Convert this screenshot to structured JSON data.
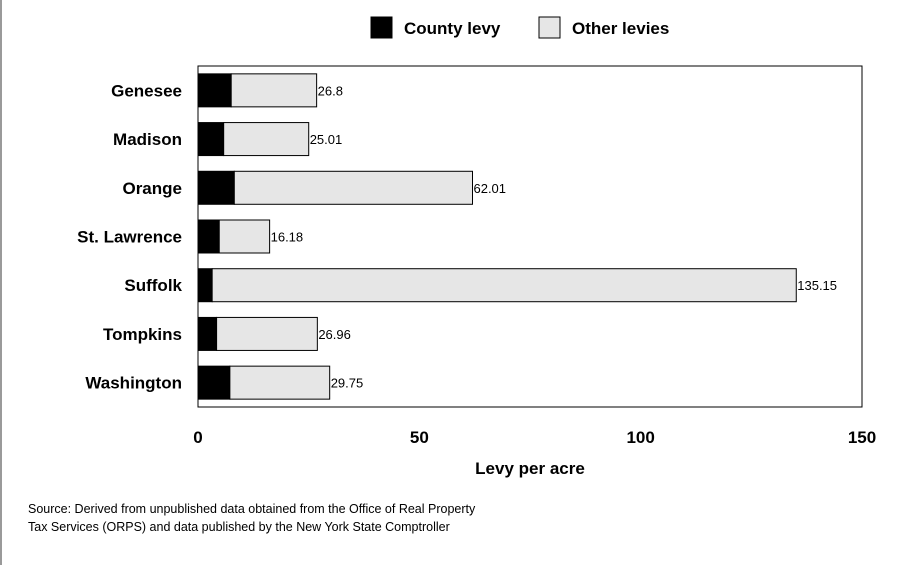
{
  "chart_data": {
    "type": "bar",
    "stacked": true,
    "orientation": "horizontal",
    "categories": [
      "Genesee",
      "Madison",
      "Orange",
      "St. Lawrence",
      "Suffolk",
      "Tompkins",
      "Washington"
    ],
    "series": [
      {
        "name": "County levy",
        "values": [
          7.5,
          5.8,
          8.2,
          4.8,
          3.2,
          4.2,
          7.2
        ],
        "color": "#000000"
      },
      {
        "name": "Other levies",
        "values": [
          19.3,
          19.21,
          53.81,
          11.38,
          131.95,
          22.76,
          22.55
        ],
        "color": "#e6e6e6"
      }
    ],
    "totals": [
      26.8,
      25.01,
      62.01,
      16.18,
      135.15,
      26.96,
      29.75
    ],
    "total_labels": [
      "26.8",
      "25.01",
      "62.01",
      "16.18",
      "135.15",
      "26.96",
      "29.75"
    ],
    "xlim": [
      0,
      150
    ],
    "xticks": [
      0,
      50,
      100,
      150
    ],
    "xtick_labels": [
      "0",
      "50",
      "100",
      "150"
    ],
    "xlabel": "Levy per acre",
    "ylabel": "",
    "title": "",
    "legend_position": "top-center",
    "grid": false
  },
  "source_note": {
    "line1": "Source: Derived from unpublished data obtained from the Office of Real Property",
    "line2": "Tax Services (ORPS) and data published by the  New York State Comptroller"
  }
}
